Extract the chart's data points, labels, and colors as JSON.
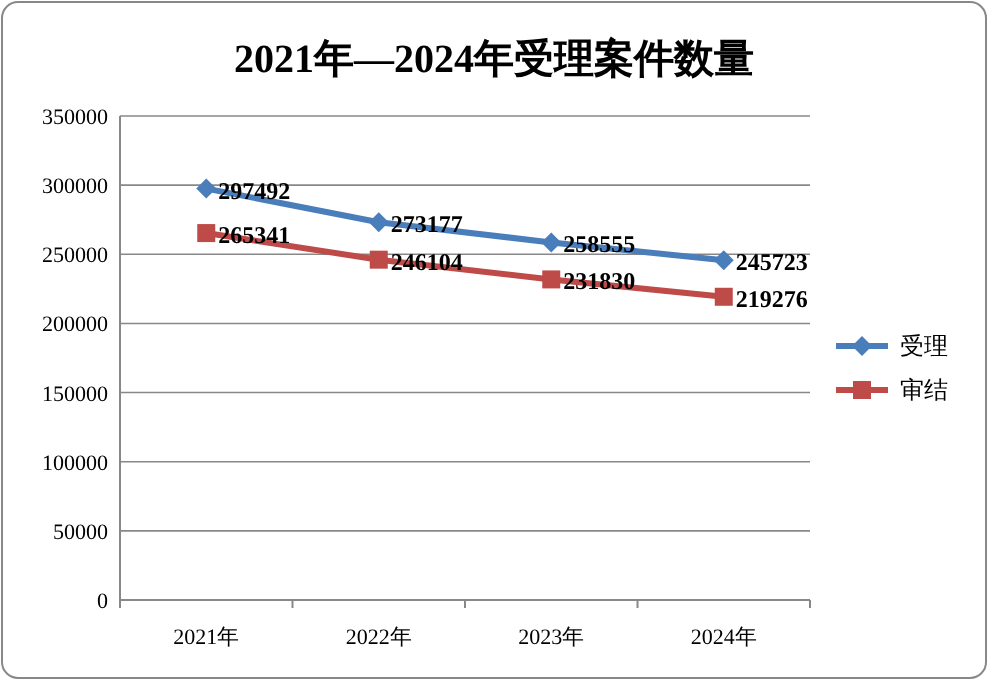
{
  "chart_data": {
    "type": "line",
    "title": "2021年—2024年受理案件数量",
    "categories": [
      "2021年",
      "2022年",
      "2023年",
      "2024年"
    ],
    "series": [
      {
        "name": "受理",
        "color": "#4a7ebb",
        "values": [
          297492,
          273177,
          258555,
          245723
        ],
        "marker": "diamond"
      },
      {
        "name": "审结",
        "color": "#be4b48",
        "values": [
          265341,
          246104,
          231830,
          219276
        ],
        "marker": "square"
      }
    ],
    "ylim": [
      0,
      350000
    ],
    "yticks": [
      0,
      50000,
      100000,
      150000,
      200000,
      250000,
      300000,
      350000
    ],
    "grid": "y",
    "legend": "right",
    "data_labels": true,
    "line_style": "solid"
  }
}
